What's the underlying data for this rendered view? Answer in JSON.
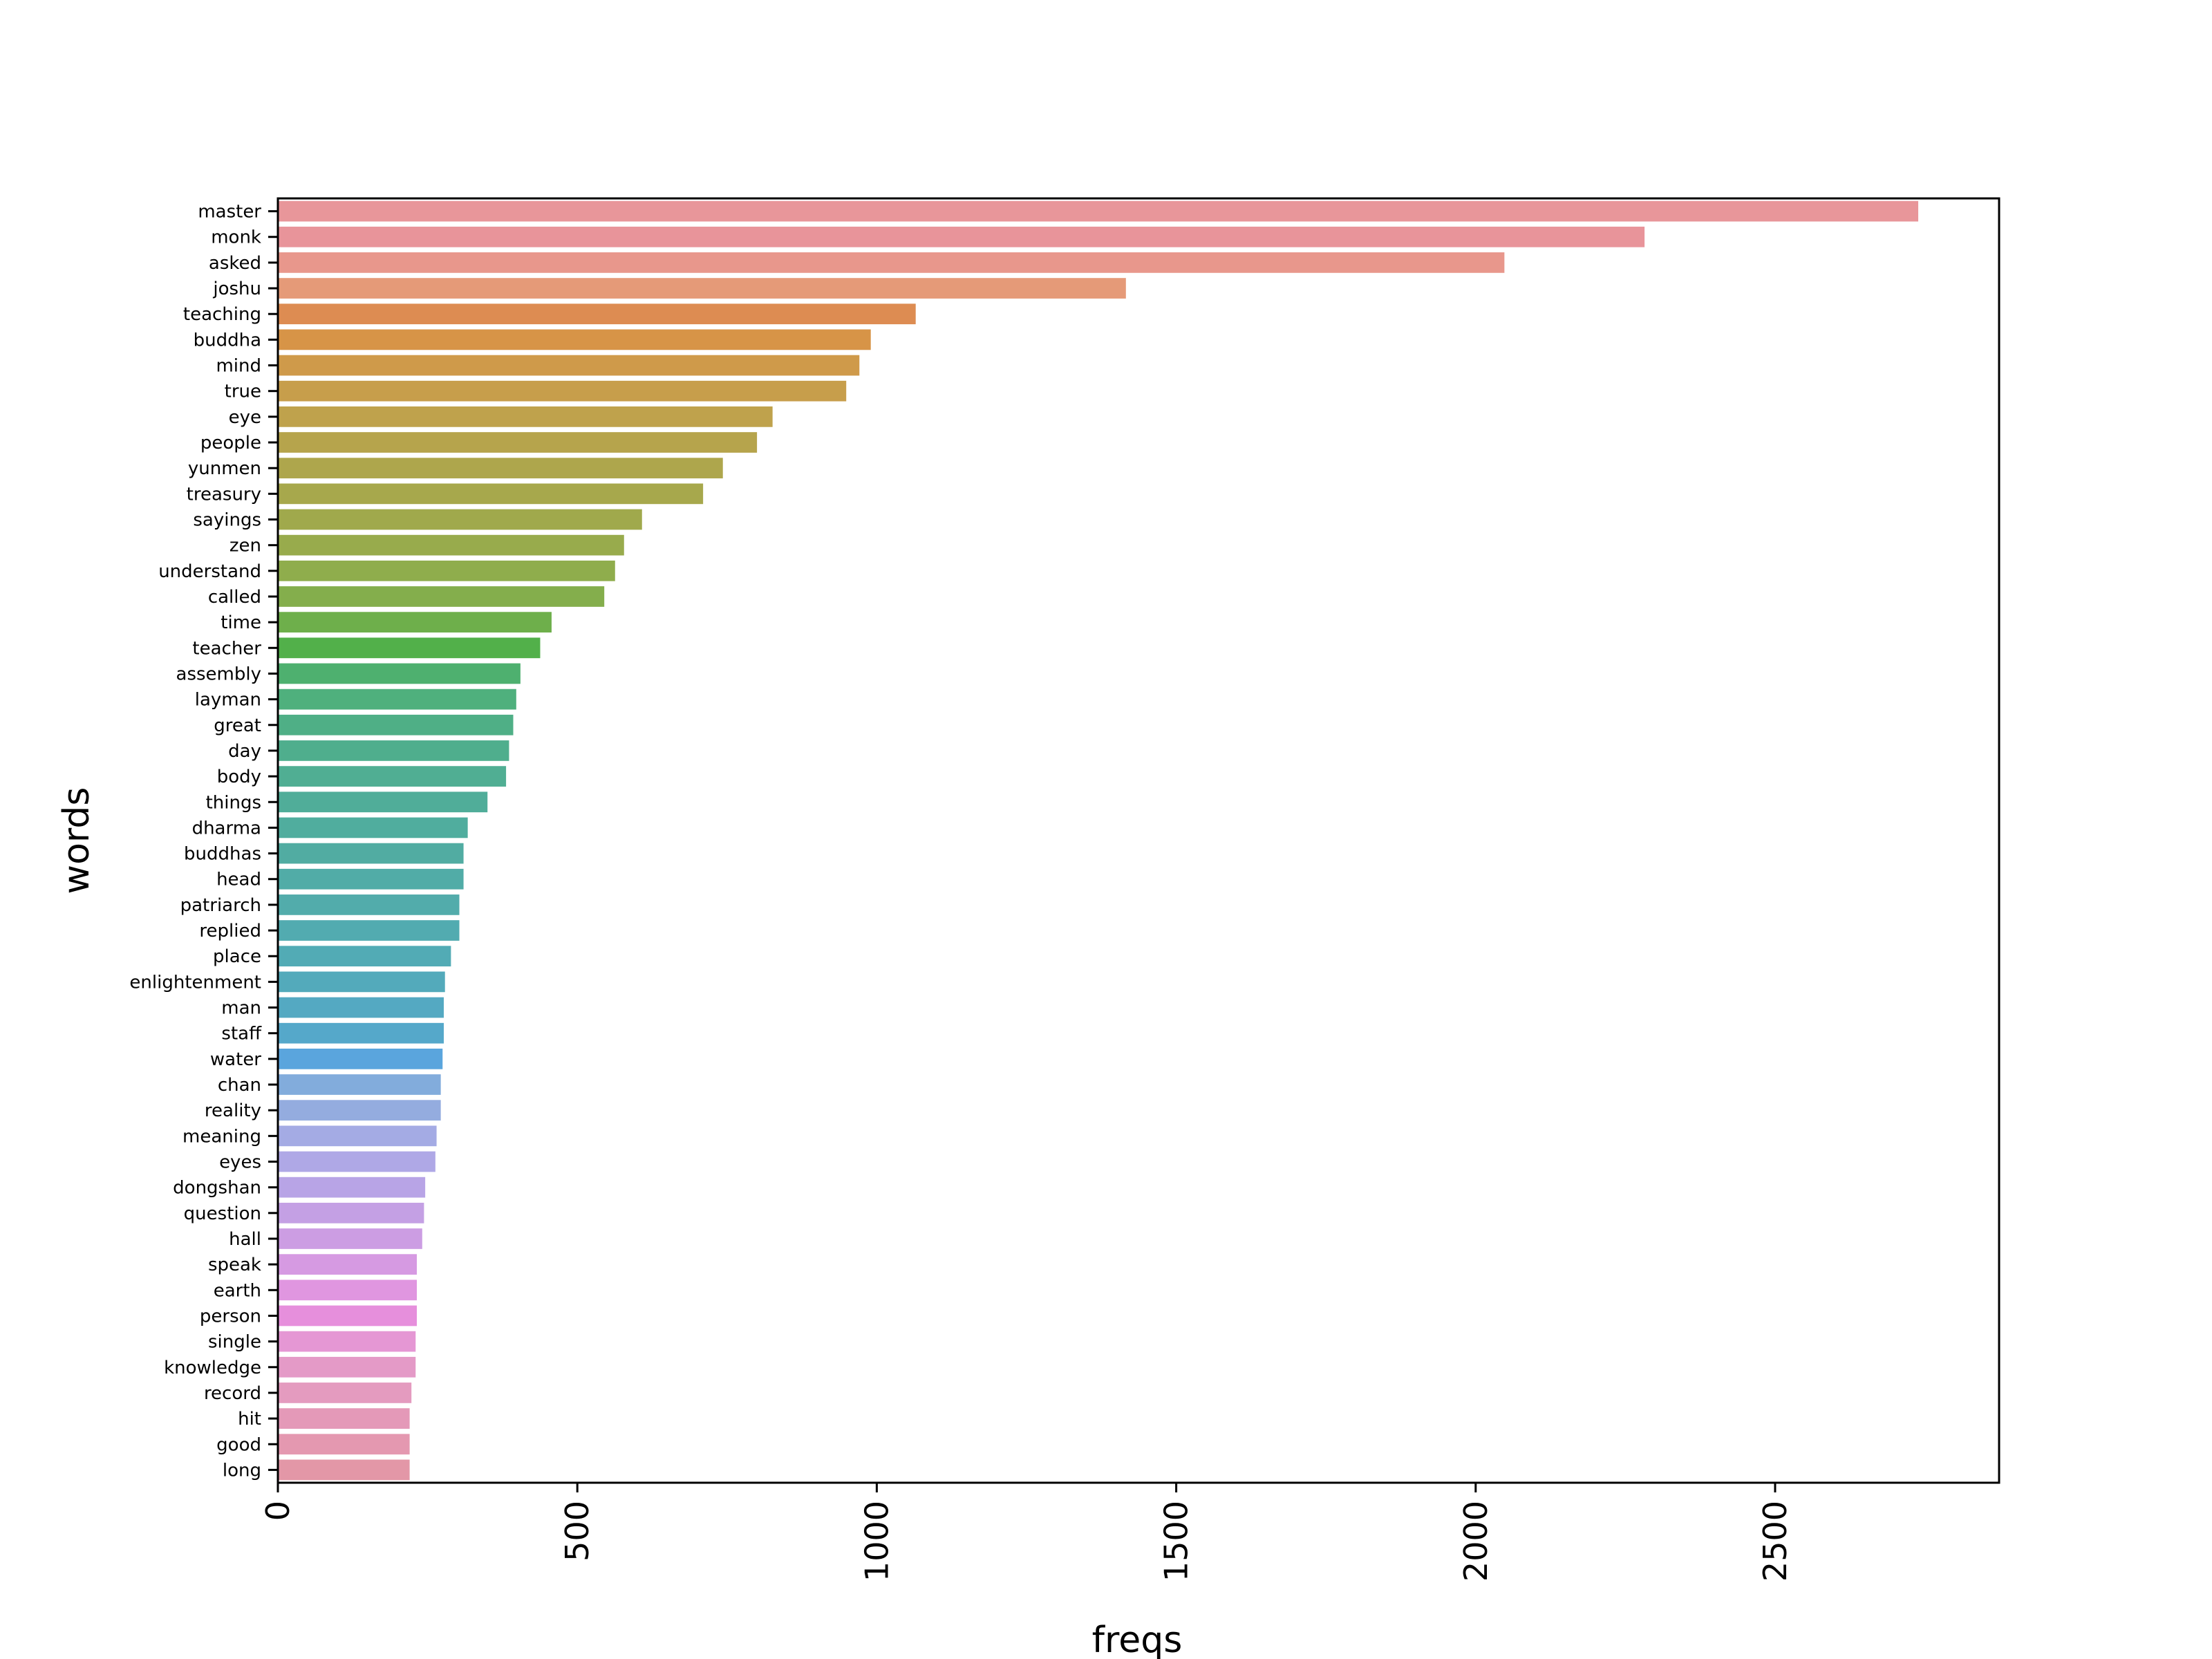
{
  "chart_data": {
    "type": "barh",
    "xlabel": "freqs",
    "ylabel": "words",
    "categories": [
      "master",
      "monk",
      "asked",
      "joshu",
      "teaching",
      "buddha",
      "mind",
      "true",
      "eye",
      "people",
      "yunmen",
      "treasury",
      "sayings",
      "zen",
      "understand",
      "called",
      "time",
      "teacher",
      "assembly",
      "layman",
      "great",
      "day",
      "body",
      "things",
      "dharma",
      "buddhas",
      "head",
      "patriarch",
      "replied",
      "place",
      "enlightenment",
      "man",
      "staff",
      "water",
      "chan",
      "reality",
      "meaning",
      "eyes",
      "dongshan",
      "question",
      "hall",
      "speak",
      "earth",
      "person",
      "single",
      "knowledge",
      "record",
      "hit",
      "good",
      "long"
    ],
    "values": [
      2739,
      2282,
      2048,
      1416,
      1065,
      990,
      971,
      949,
      826,
      800,
      743,
      710,
      608,
      578,
      563,
      545,
      457,
      438,
      405,
      398,
      393,
      386,
      381,
      350,
      317,
      310,
      310,
      303,
      303,
      289,
      279,
      277,
      277,
      275,
      272,
      272,
      265,
      263,
      246,
      244,
      241,
      232,
      232,
      232,
      230,
      230,
      223,
      220,
      220,
      220
    ],
    "colors": [
      "#e8969a",
      "#e8949a",
      "#e8978c",
      "#e59a78",
      "#dd8c52",
      "#d79447",
      "#cf9a4a",
      "#c79e4b",
      "#bfa24c",
      "#b6a44c",
      "#aea64c",
      "#a7a84c",
      "#a0a94c",
      "#98ab4c",
      "#8fad4c",
      "#84ae4c",
      "#6eaf4b",
      "#52b04a",
      "#4eb06f",
      "#4fb07d",
      "#4faf86",
      "#4fae8d",
      "#50ae93",
      "#50ad99",
      "#50ad9e",
      "#51aca2",
      "#51aca7",
      "#52acab",
      "#52abb0",
      "#52abb5",
      "#53aabb",
      "#54a9c2",
      "#55a8ca",
      "#5aa5dd",
      "#82acdc",
      "#94acdf",
      "#a4abe4",
      "#afa8e6",
      "#b8a4e6",
      "#c4a0e4",
      "#cc9de3",
      "#d69ae2",
      "#e096e0",
      "#e68fdc",
      "#e597d4",
      "#e49ac7",
      "#e49bbf",
      "#e499b8",
      "#e498b0",
      "#e397a7"
    ],
    "xlim": [
      0,
      2874
    ],
    "xticks": [
      0,
      500,
      1000,
      1500,
      2000,
      2500
    ]
  }
}
